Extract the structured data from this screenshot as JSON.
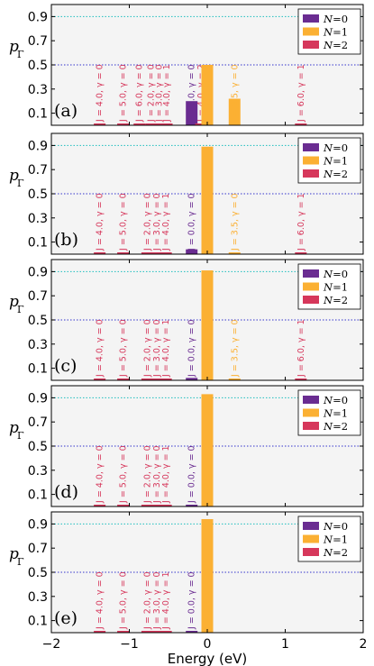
{
  "figure": {
    "x_axis_label": "Energy (eV)",
    "x_tick_labels": [
      "−2",
      "−1",
      "0",
      "1",
      "2"
    ],
    "y_axis_label_main": "p",
    "y_axis_label_sub": "Γ",
    "y_tick_labels": [
      "0.1",
      "0.3",
      "0.5",
      "0.7",
      "0.9"
    ]
  },
  "colors": {
    "N0": "#6a2c91",
    "N1": "#fbb033",
    "N2": "#d6375b",
    "hline_09": "#36c4c4",
    "hline_05": "#3333cc",
    "panel_bg": "#f4f4f4"
  },
  "chart_data": [
    {
      "panel": "(a)",
      "type": "bar",
      "xlim": [
        -2,
        2
      ],
      "ylim": [
        0,
        1.0
      ],
      "hlines": [
        0.9,
        0.5
      ],
      "legend": [
        "N=0",
        "N=1",
        "N=2"
      ],
      "legend_position": "top-right",
      "bars": [
        {
          "x": -1.38,
          "value": 0.01,
          "series": "N=2",
          "label": "J = 4.0, γ = 0"
        },
        {
          "x": -1.08,
          "value": 0.01,
          "series": "N=2",
          "label": "J = 5.0, γ = 0"
        },
        {
          "x": -0.87,
          "value": 0.01,
          "series": "N=2",
          "label": "J = 6.0, γ = 0"
        },
        {
          "x": -0.72,
          "value": 0.01,
          "series": "N=2",
          "label": "J = 2.0, γ = 0"
        },
        {
          "x": -0.62,
          "value": 0.01,
          "series": "N=2",
          "label": "J = 3.0, γ = 0"
        },
        {
          "x": -0.52,
          "value": 0.01,
          "series": "N=2",
          "label": "J = 4.0, γ = 1"
        },
        {
          "x": -0.2,
          "value": 0.2,
          "series": "N=0",
          "label": "J = 0.0, γ = 0"
        },
        {
          "x": -0.08,
          "value": 0.01,
          "series": "N=2",
          "label": "J = 4.0, γ = 2"
        },
        {
          "x": 0.0,
          "value": 0.5,
          "series": "N=1",
          "label": "J = 2.5, γ = 0"
        },
        {
          "x": 0.35,
          "value": 0.22,
          "series": "N=1",
          "label": "J = 3.5, γ = 0"
        },
        {
          "x": 1.2,
          "value": 0.01,
          "series": "N=2",
          "label": "J = 6.0, γ = 1"
        }
      ]
    },
    {
      "panel": "(b)",
      "type": "bar",
      "xlim": [
        -2,
        2
      ],
      "ylim": [
        0,
        1.0
      ],
      "hlines": [
        0.9,
        0.5
      ],
      "legend": [
        "N=0",
        "N=1",
        "N=2"
      ],
      "legend_position": "top-right",
      "bars": [
        {
          "x": -1.38,
          "value": 0.01,
          "series": "N=2",
          "label": "J = 4.0, γ = 0"
        },
        {
          "x": -1.08,
          "value": 0.01,
          "series": "N=2",
          "label": "J = 5.0, γ = 0"
        },
        {
          "x": -0.77,
          "value": 0.01,
          "series": "N=2",
          "label": "J = 2.0, γ = 0"
        },
        {
          "x": -0.65,
          "value": 0.01,
          "series": "N=2",
          "label": "J = 3.0, γ = 0"
        },
        {
          "x": -0.53,
          "value": 0.01,
          "series": "N=2",
          "label": "J = 4.0, γ = 1"
        },
        {
          "x": -0.2,
          "value": 0.04,
          "series": "N=0",
          "label": "J = 0.0, γ = 0"
        },
        {
          "x": 0.0,
          "value": 0.89,
          "series": "N=1",
          "label": "J = 2.5, γ = 0"
        },
        {
          "x": 0.35,
          "value": 0.01,
          "series": "N=1",
          "label": "J = 3.5, γ = 0"
        },
        {
          "x": 1.2,
          "value": 0.01,
          "series": "N=2",
          "label": "J = 6.0, γ = 1"
        }
      ]
    },
    {
      "panel": "(c)",
      "type": "bar",
      "xlim": [
        -2,
        2
      ],
      "ylim": [
        0,
        1.0
      ],
      "hlines": [
        0.9,
        0.5
      ],
      "legend": [
        "N=0",
        "N=1",
        "N=2"
      ],
      "legend_position": "top-right",
      "bars": [
        {
          "x": -1.38,
          "value": 0.01,
          "series": "N=2",
          "label": "J = 4.0, γ = 0"
        },
        {
          "x": -1.08,
          "value": 0.01,
          "series": "N=2",
          "label": "J = 5.0, γ = 0"
        },
        {
          "x": -0.77,
          "value": 0.01,
          "series": "N=2",
          "label": "J = 2.0, γ = 0"
        },
        {
          "x": -0.65,
          "value": 0.01,
          "series": "N=2",
          "label": "J = 3.0, γ = 0"
        },
        {
          "x": -0.53,
          "value": 0.01,
          "series": "N=2",
          "label": "J = 4.0, γ = 1"
        },
        {
          "x": -0.2,
          "value": 0.02,
          "series": "N=0",
          "label": "J = 0.0, γ = 0"
        },
        {
          "x": 0.0,
          "value": 0.91,
          "series": "N=1",
          "label": "J = 2.5, γ = 0"
        },
        {
          "x": 0.35,
          "value": 0.01,
          "series": "N=1",
          "label": "J = 3.5, γ = 0"
        },
        {
          "x": 1.2,
          "value": 0.01,
          "series": "N=2",
          "label": "J = 6.0, γ = 1"
        }
      ]
    },
    {
      "panel": "(d)",
      "type": "bar",
      "xlim": [
        -2,
        2
      ],
      "ylim": [
        0,
        1.0
      ],
      "hlines": [
        0.9,
        0.5
      ],
      "legend": [
        "N=0",
        "N=1",
        "N=2"
      ],
      "legend_position": "top-right",
      "bars": [
        {
          "x": -1.38,
          "value": 0.01,
          "series": "N=2",
          "label": "J = 4.0, γ = 0"
        },
        {
          "x": -1.08,
          "value": 0.01,
          "series": "N=2",
          "label": "J = 5.0, γ = 0"
        },
        {
          "x": -0.77,
          "value": 0.01,
          "series": "N=2",
          "label": "J = 2.0, γ = 0"
        },
        {
          "x": -0.65,
          "value": 0.01,
          "series": "N=2",
          "label": "J = 3.0, γ = 0"
        },
        {
          "x": -0.53,
          "value": 0.01,
          "series": "N=2",
          "label": "J = 4.0, γ = 1"
        },
        {
          "x": -0.2,
          "value": 0.01,
          "series": "N=0",
          "label": "J = 0.0, γ = 0"
        },
        {
          "x": 0.0,
          "value": 0.93,
          "series": "N=1",
          "label": "J = 2.5, γ = 0"
        }
      ]
    },
    {
      "panel": "(e)",
      "type": "bar",
      "xlim": [
        -2,
        2
      ],
      "ylim": [
        0,
        1.0
      ],
      "hlines": [
        0.9,
        0.5
      ],
      "legend": [
        "N=0",
        "N=1",
        "N=2"
      ],
      "legend_position": "top-right",
      "bars": [
        {
          "x": -1.38,
          "value": 0.01,
          "series": "N=2",
          "label": "J = 4.0, γ = 0"
        },
        {
          "x": -1.08,
          "value": 0.01,
          "series": "N=2",
          "label": "J = 5.0, γ = 0"
        },
        {
          "x": -0.77,
          "value": 0.01,
          "series": "N=2",
          "label": "J = 2.0, γ = 0"
        },
        {
          "x": -0.65,
          "value": 0.01,
          "series": "N=2",
          "label": "J = 3.0, γ = 0"
        },
        {
          "x": -0.53,
          "value": 0.01,
          "series": "N=2",
          "label": "J = 4.0, γ = 1"
        },
        {
          "x": -0.2,
          "value": 0.01,
          "series": "N=0",
          "label": "J = 0.0, γ = 0"
        },
        {
          "x": 0.0,
          "value": 0.94,
          "series": "N=1",
          "label": "J = 2.5, γ = 0"
        }
      ]
    }
  ]
}
